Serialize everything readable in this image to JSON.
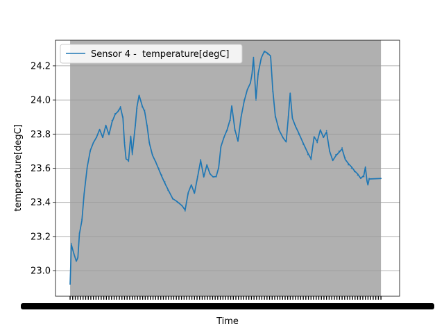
{
  "chart_data": {
    "type": "line",
    "title": "",
    "xlabel": "Time",
    "ylabel": "temperature[degC]",
    "x_tick_labels_note": "dense overlapping date labels rendered as an illegible black band",
    "ylim": [
      22.85,
      24.35
    ],
    "yticks": [
      23.0,
      23.2,
      23.4,
      23.6,
      23.8,
      24.0,
      24.2
    ],
    "grid": "horizontal",
    "legend_position": "top-left",
    "shaded_region": {
      "x_start": 0.0,
      "x_end": 1.0,
      "color": "#b0b0b0"
    },
    "x_range": [
      -0.047,
      1.06
    ],
    "series": [
      {
        "name": "Sensor 4 -  temperature[degC]",
        "color": "#1f77b4",
        "points": [
          [
            0.0,
            22.92
          ],
          [
            0.004,
            23.16
          ],
          [
            0.012,
            23.1
          ],
          [
            0.02,
            23.06
          ],
          [
            0.025,
            23.08
          ],
          [
            0.03,
            23.22
          ],
          [
            0.038,
            23.3
          ],
          [
            0.045,
            23.45
          ],
          [
            0.055,
            23.6
          ],
          [
            0.065,
            23.7
          ],
          [
            0.075,
            23.75
          ],
          [
            0.085,
            23.78
          ],
          [
            0.095,
            23.82
          ],
          [
            0.105,
            23.78
          ],
          [
            0.115,
            23.85
          ],
          [
            0.125,
            23.8
          ],
          [
            0.135,
            23.88
          ],
          [
            0.145,
            23.92
          ],
          [
            0.155,
            23.94
          ],
          [
            0.162,
            23.96
          ],
          [
            0.17,
            23.9
          ],
          [
            0.175,
            23.75
          ],
          [
            0.18,
            23.66
          ],
          [
            0.188,
            23.64
          ],
          [
            0.195,
            23.78
          ],
          [
            0.2,
            23.68
          ],
          [
            0.21,
            23.85
          ],
          [
            0.215,
            23.95
          ],
          [
            0.222,
            24.02
          ],
          [
            0.232,
            23.96
          ],
          [
            0.24,
            23.94
          ],
          [
            0.248,
            23.85
          ],
          [
            0.255,
            23.75
          ],
          [
            0.265,
            23.68
          ],
          [
            0.275,
            23.64
          ],
          [
            0.285,
            23.6
          ],
          [
            0.295,
            23.56
          ],
          [
            0.305,
            23.52
          ],
          [
            0.315,
            23.47
          ],
          [
            0.33,
            23.42
          ],
          [
            0.345,
            23.4
          ],
          [
            0.36,
            23.38
          ],
          [
            0.37,
            23.35
          ],
          [
            0.38,
            23.45
          ],
          [
            0.39,
            23.5
          ],
          [
            0.4,
            23.46
          ],
          [
            0.41,
            23.55
          ],
          [
            0.42,
            23.65
          ],
          [
            0.43,
            23.55
          ],
          [
            0.44,
            23.62
          ],
          [
            0.45,
            23.57
          ],
          [
            0.46,
            23.55
          ],
          [
            0.47,
            23.55
          ],
          [
            0.478,
            23.6
          ],
          [
            0.485,
            23.72
          ],
          [
            0.495,
            23.78
          ],
          [
            0.505,
            23.82
          ],
          [
            0.515,
            23.88
          ],
          [
            0.52,
            23.96
          ],
          [
            0.53,
            23.82
          ],
          [
            0.54,
            23.76
          ],
          [
            0.55,
            23.9
          ],
          [
            0.56,
            24.0
          ],
          [
            0.57,
            24.06
          ],
          [
            0.58,
            24.1
          ],
          [
            0.585,
            24.15
          ],
          [
            0.59,
            24.25
          ],
          [
            0.598,
            24.0
          ],
          [
            0.605,
            24.15
          ],
          [
            0.615,
            24.24
          ],
          [
            0.625,
            24.28
          ],
          [
            0.635,
            24.27
          ],
          [
            0.645,
            24.25
          ],
          [
            0.652,
            24.05
          ],
          [
            0.66,
            23.9
          ],
          [
            0.672,
            23.83
          ],
          [
            0.685,
            23.78
          ],
          [
            0.695,
            23.76
          ],
          [
            0.702,
            23.9
          ],
          [
            0.708,
            24.04
          ],
          [
            0.715,
            23.9
          ],
          [
            0.725,
            23.85
          ],
          [
            0.735,
            23.8
          ],
          [
            0.75,
            23.74
          ],
          [
            0.765,
            23.68
          ],
          [
            0.775,
            23.65
          ],
          [
            0.785,
            23.78
          ],
          [
            0.795,
            23.75
          ],
          [
            0.805,
            23.82
          ],
          [
            0.815,
            23.78
          ],
          [
            0.825,
            23.82
          ],
          [
            0.835,
            23.7
          ],
          [
            0.845,
            23.65
          ],
          [
            0.855,
            23.68
          ],
          [
            0.865,
            23.7
          ],
          [
            0.875,
            23.72
          ],
          [
            0.885,
            23.66
          ],
          [
            0.895,
            23.62
          ],
          [
            0.905,
            23.6
          ],
          [
            0.915,
            23.58
          ],
          [
            0.925,
            23.56
          ],
          [
            0.935,
            23.54
          ],
          [
            0.945,
            23.55
          ],
          [
            0.95,
            23.6
          ],
          [
            0.955,
            23.53
          ],
          [
            0.958,
            23.51
          ],
          [
            0.962,
            23.54
          ],
          [
            1.0,
            23.54
          ],
          [
            1.0,
            23.54
          ]
        ]
      }
    ]
  }
}
